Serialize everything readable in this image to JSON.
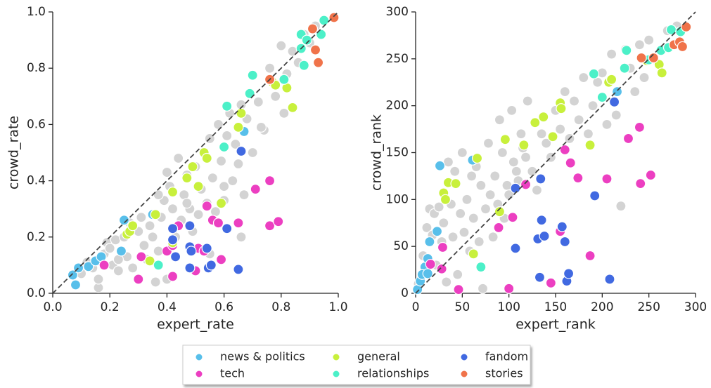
{
  "chart_data": [
    {
      "type": "scatter",
      "xlabel": "expert_rate",
      "ylabel": "crowd_rate",
      "xlim": [
        0,
        1
      ],
      "ylim": [
        0,
        1
      ],
      "xticks": [
        {
          "value": 0,
          "label": "0.0"
        },
        0.2,
        0.4,
        0.6,
        0.8,
        {
          "value": 1,
          "label": "1.0"
        }
      ],
      "yticks": [
        {
          "value": 0,
          "label": "0.0"
        },
        0.2,
        0.4,
        0.6,
        0.8,
        {
          "value": 1,
          "label": "1.0"
        }
      ],
      "series": [
        {
          "color": "#d3d3d3",
          "x": [
            0.1,
            0.12,
            0.14,
            0.16,
            0.18,
            0.19,
            0.2,
            0.21,
            0.22,
            0.23,
            0.25,
            0.26,
            0.27,
            0.28,
            0.3,
            0.31,
            0.32,
            0.33,
            0.34,
            0.35,
            0.36,
            0.37,
            0.38,
            0.39,
            0.4,
            0.41,
            0.42,
            0.43,
            0.44,
            0.45,
            0.46,
            0.47,
            0.48,
            0.49,
            0.5,
            0.51,
            0.52,
            0.53,
            0.54,
            0.55,
            0.56,
            0.57,
            0.58,
            0.59,
            0.6,
            0.61,
            0.62,
            0.63,
            0.64,
            0.65,
            0.66,
            0.67,
            0.68,
            0.7,
            0.72,
            0.74,
            0.76,
            0.78,
            0.8,
            0.82,
            0.84,
            0.86,
            0.88,
            0.9,
            0.92,
            0.16,
            0.23,
            0.37,
            0.4,
            0.47,
            0.55,
            0.6,
            0.66,
            0.73,
            0.81
          ],
          "y": [
            0.07,
            0.11,
            0.09,
            0.02,
            0.14,
            0.18,
            0.16,
            0.1,
            0.19,
            0.08,
            0.2,
            0.13,
            0.25,
            0.09,
            0.22,
            0.27,
            0.17,
            0.12,
            0.24,
            0.2,
            0.04,
            0.15,
            0.27,
            0.33,
            0.43,
            0.38,
            0.3,
            0.2,
            0.48,
            0.26,
            0.35,
            0.42,
            0.3,
            0.22,
            0.45,
            0.28,
            0.37,
            0.5,
            0.32,
            0.55,
            0.41,
            0.29,
            0.6,
            0.47,
            0.33,
            0.56,
            0.64,
            0.4,
            0.53,
            0.46,
            0.67,
            0.35,
            0.62,
            0.5,
            0.68,
            0.58,
            0.8,
            0.7,
            0.88,
            0.78,
            0.86,
            0.82,
            0.92,
            0.89,
            0.95,
            0.05,
            0.12,
            0.35,
            0.05,
            0.32,
            0.14,
            0.38,
            0.2,
            0.59,
            0.64
          ]
        },
        {
          "name": "news & politics",
          "color": "#58bfea",
          "x": [
            0.07,
            0.08,
            0.09,
            0.125,
            0.15,
            0.17,
            0.24,
            0.25,
            0.35,
            0.67
          ],
          "y": [
            0.065,
            0.03,
            0.09,
            0.095,
            0.115,
            0.13,
            0.15,
            0.26,
            0.28,
            0.575
          ]
        },
        {
          "name": "tech",
          "color": "#ec3fc1",
          "x": [
            0.18,
            0.3,
            0.31,
            0.4,
            0.42,
            0.42,
            0.44,
            0.5,
            0.51,
            0.53,
            0.54,
            0.56,
            0.58,
            0.59,
            0.65,
            0.71,
            0.76,
            0.76,
            0.79
          ],
          "y": [
            0.1,
            0.05,
            0.13,
            0.15,
            0.17,
            0.06,
            0.24,
            0.08,
            0.16,
            0.15,
            0.31,
            0.26,
            0.25,
            0.12,
            0.25,
            0.37,
            0.4,
            0.24,
            0.255
          ]
        },
        {
          "name": "general",
          "color": "#c8f03c",
          "x": [
            0.26,
            0.27,
            0.28,
            0.36,
            0.34,
            0.42,
            0.42,
            0.47,
            0.49,
            0.51,
            0.53,
            0.54,
            0.59,
            0.65,
            0.66,
            0.77,
            0.78,
            0.82,
            0.84
          ],
          "y": [
            0.21,
            0.22,
            0.24,
            0.28,
            0.115,
            0.18,
            0.36,
            0.41,
            0.45,
            0.38,
            0.5,
            0.48,
            0.32,
            0.59,
            0.64,
            0.75,
            0.74,
            0.73,
            0.66
          ]
        },
        {
          "name": "relationships",
          "color": "#4cf0c8",
          "x": [
            0.37,
            0.6,
            0.61,
            0.69,
            0.7,
            0.81,
            0.87,
            0.87,
            0.88,
            0.89,
            0.94,
            0.95
          ],
          "y": [
            0.1,
            0.52,
            0.665,
            0.71,
            0.775,
            0.76,
            0.92,
            0.87,
            0.81,
            0.9,
            0.92,
            0.97
          ]
        },
        {
          "name": "fandom",
          "color": "#4169e1",
          "x": [
            0.42,
            0.42,
            0.43,
            0.48,
            0.48,
            0.48,
            0.485,
            0.54,
            0.545,
            0.555,
            0.61,
            0.65,
            0.66
          ],
          "y": [
            0.23,
            0.19,
            0.13,
            0.24,
            0.165,
            0.09,
            0.15,
            0.16,
            0.09,
            0.1,
            0.23,
            0.085,
            0.505
          ]
        },
        {
          "name": "stories",
          "color": "#f0734a",
          "x": [
            0.76,
            0.91,
            0.92,
            0.93,
            0.985
          ],
          "y": [
            0.76,
            0.94,
            0.865,
            0.82,
            0.98
          ]
        }
      ]
    },
    {
      "type": "scatter",
      "xlabel": "expert_rank",
      "ylabel": "crowd_rank",
      "xlim": [
        0,
        300
      ],
      "ylim": [
        0,
        300
      ],
      "xticks": [
        0,
        50,
        100,
        150,
        200,
        250,
        300
      ],
      "yticks": [
        0,
        50,
        100,
        150,
        200,
        250,
        300
      ],
      "series": [
        {
          "color": "#d3d3d3",
          "x": [
            3,
            8,
            12,
            15,
            18,
            20,
            22,
            25,
            28,
            30,
            33,
            35,
            38,
            40,
            42,
            45,
            48,
            50,
            52,
            55,
            58,
            60,
            62,
            65,
            68,
            70,
            72,
            75,
            78,
            80,
            83,
            85,
            88,
            90,
            93,
            95,
            98,
            100,
            103,
            105,
            108,
            110,
            113,
            115,
            118,
            120,
            125,
            130,
            135,
            140,
            145,
            150,
            155,
            160,
            165,
            170,
            175,
            180,
            185,
            190,
            195,
            200,
            205,
            210,
            215,
            220,
            225,
            230,
            235,
            240,
            245,
            250,
            260,
            270,
            280
          ],
          "y": [
            10,
            40,
            70,
            90,
            62,
            85,
            30,
            92,
            55,
            75,
            12,
            140,
            95,
            60,
            130,
            20,
            85,
            150,
            65,
            100,
            45,
            125,
            80,
            135,
            55,
            115,
            5,
            90,
            160,
            105,
            60,
            125,
            95,
            185,
            150,
            80,
            115,
            105,
            195,
            140,
            130,
            120,
            170,
            155,
            145,
            205,
            130,
            110,
            170,
            160,
            145,
            195,
            175,
            215,
            165,
            205,
            185,
            230,
            170,
            200,
            225,
            235,
            180,
            255,
            190,
            93,
            260,
            240,
            215,
            265,
            230,
            270,
            245,
            280,
            285
          ]
        },
        {
          "color": "#58bfea",
          "x": [
            2,
            5,
            10,
            7,
            13,
            13,
            15,
            23,
            26,
            61,
            216
          ],
          "y": [
            4,
            13,
            28,
            20,
            21,
            37,
            55,
            66,
            136,
            142,
            215
          ]
        },
        {
          "color": "#ec3fc1",
          "x": [
            16,
            29,
            28,
            46,
            89,
            100,
            104,
            118,
            145,
            155,
            160,
            166,
            174,
            187,
            205,
            228,
            240,
            241,
            252
          ],
          "y": [
            31,
            49,
            26,
            4,
            70,
            5,
            81,
            116,
            11,
            66,
            153,
            139,
            123,
            40,
            122,
            165,
            177,
            117,
            126
          ]
        },
        {
          "color": "#c8f03c",
          "x": [
            30,
            32,
            35,
            43,
            62,
            66,
            90,
            96,
            116,
            128,
            137,
            147,
            155,
            156,
            187,
            207,
            210,
            248,
            261,
            264
          ],
          "y": [
            107,
            100,
            118,
            117,
            42,
            144,
            87,
            164,
            158,
            182,
            188,
            167,
            203,
            197,
            158,
            225,
            228,
            248,
            244,
            235
          ]
        },
        {
          "color": "#4cf0c8",
          "x": [
            70,
            191,
            200,
            224,
            226,
            250,
            263,
            271,
            274,
            279,
            284
          ],
          "y": [
            28,
            234,
            209,
            240,
            259,
            249,
            259,
            262,
            281,
            266,
            279
          ]
        },
        {
          "color": "#4169e1",
          "x": [
            107,
            107,
            131,
            133,
            134,
            135,
            138,
            157,
            160,
            162,
            164,
            192,
            208,
            213
          ],
          "y": [
            112,
            48,
            58,
            17,
            122,
            78,
            61,
            71,
            55,
            13,
            21,
            104,
            15,
            204
          ]
        },
        {
          "color": "#f0734a",
          "x": [
            242,
            255,
            277,
            283,
            286,
            290
          ],
          "y": [
            251,
            251,
            265,
            268,
            263,
            284
          ]
        }
      ]
    }
  ]
}
